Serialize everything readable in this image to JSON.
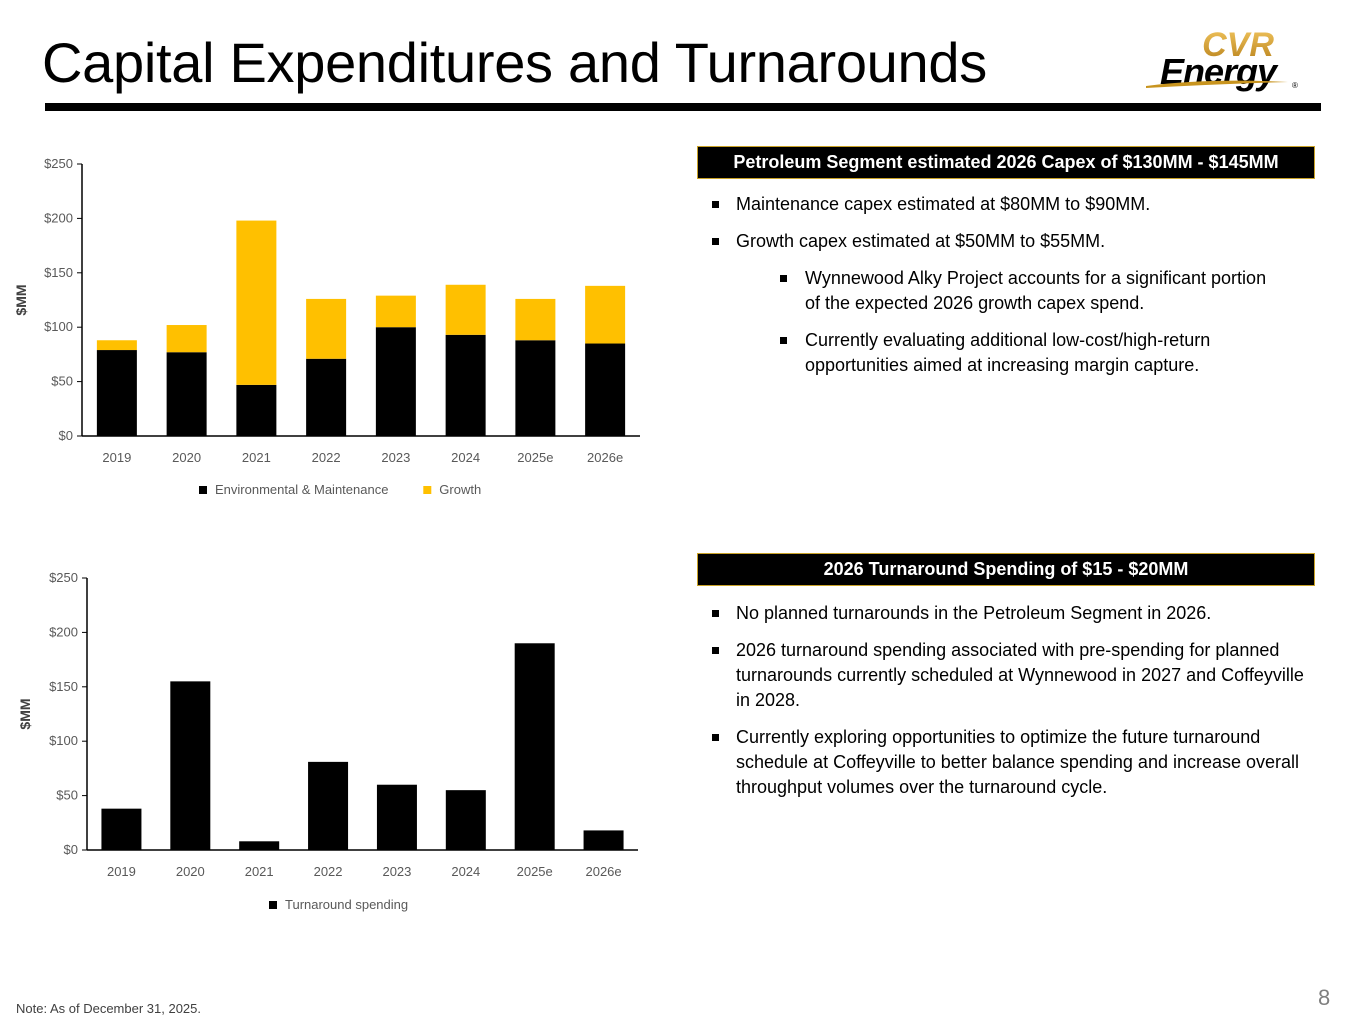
{
  "title": "Capital Expenditures and Turnarounds",
  "logo": {
    "top_text": "CVR",
    "bottom_text": "Energy",
    "mark": "®"
  },
  "colors": {
    "black": "#000000",
    "growth": "#FFC000",
    "header_border": "#C9A227",
    "logo_gold": "#C8941E"
  },
  "chart_data": [
    {
      "type": "bar",
      "stacked": true,
      "categories": [
        "2019",
        "2020",
        "2021",
        "2022",
        "2023",
        "2024",
        "2025e",
        "2026e"
      ],
      "series": [
        {
          "name": "Environmental & Maintenance",
          "color": "#000000",
          "values": [
            79,
            77,
            47,
            71,
            100,
            93,
            88,
            85
          ]
        },
        {
          "name": "Growth",
          "color": "#FFC000",
          "values": [
            9,
            25,
            151,
            55,
            29,
            46,
            38,
            53
          ]
        }
      ],
      "ylabel": "$MM",
      "ylim": [
        0,
        250
      ],
      "yticks": [
        "$0",
        "$50",
        "$100",
        "$150",
        "$200",
        "$250"
      ],
      "legend": "bottom",
      "grid": false
    },
    {
      "type": "bar",
      "categories": [
        "2019",
        "2020",
        "2021",
        "2022",
        "2023",
        "2024",
        "2025e",
        "2026e"
      ],
      "series": [
        {
          "name": "Turnaround spending",
          "color": "#000000",
          "values": [
            38,
            155,
            8,
            81,
            60,
            55,
            190,
            18
          ]
        }
      ],
      "ylabel": "$MM",
      "ylim": [
        0,
        250
      ],
      "yticks": [
        "$0",
        "$50",
        "$100",
        "$150",
        "$200",
        "$250"
      ],
      "legend": "bottom",
      "grid": false
    }
  ],
  "capex_panel": {
    "header": "Petroleum Segment estimated 2026 Capex of $130MM - $145MM",
    "bullets": [
      "Maintenance capex estimated at $80MM to $90MM.",
      "Growth capex estimated at $50MM to $55MM."
    ],
    "sub_bullets": [
      "Wynnewood Alky Project accounts for a significant portion of the expected 2026 growth capex spend.",
      "Currently evaluating additional low-cost/high-return opportunities aimed at increasing margin capture."
    ]
  },
  "turnaround_panel": {
    "header": "2026 Turnaround Spending of $15 - $20MM",
    "bullets": [
      "No planned turnarounds in the Petroleum Segment in 2026.",
      "2026 turnaround spending associated with pre-spending for planned turnarounds currently scheduled at Wynnewood in 2027 and Coffeyville in 2028.",
      "Currently exploring opportunities to optimize the future turnaround schedule at Coffeyville to better balance spending and increase overall throughput volumes over the turnaround cycle."
    ]
  },
  "footer": {
    "note": "Note:  As of December 31, 2025.",
    "page_number": "8"
  }
}
